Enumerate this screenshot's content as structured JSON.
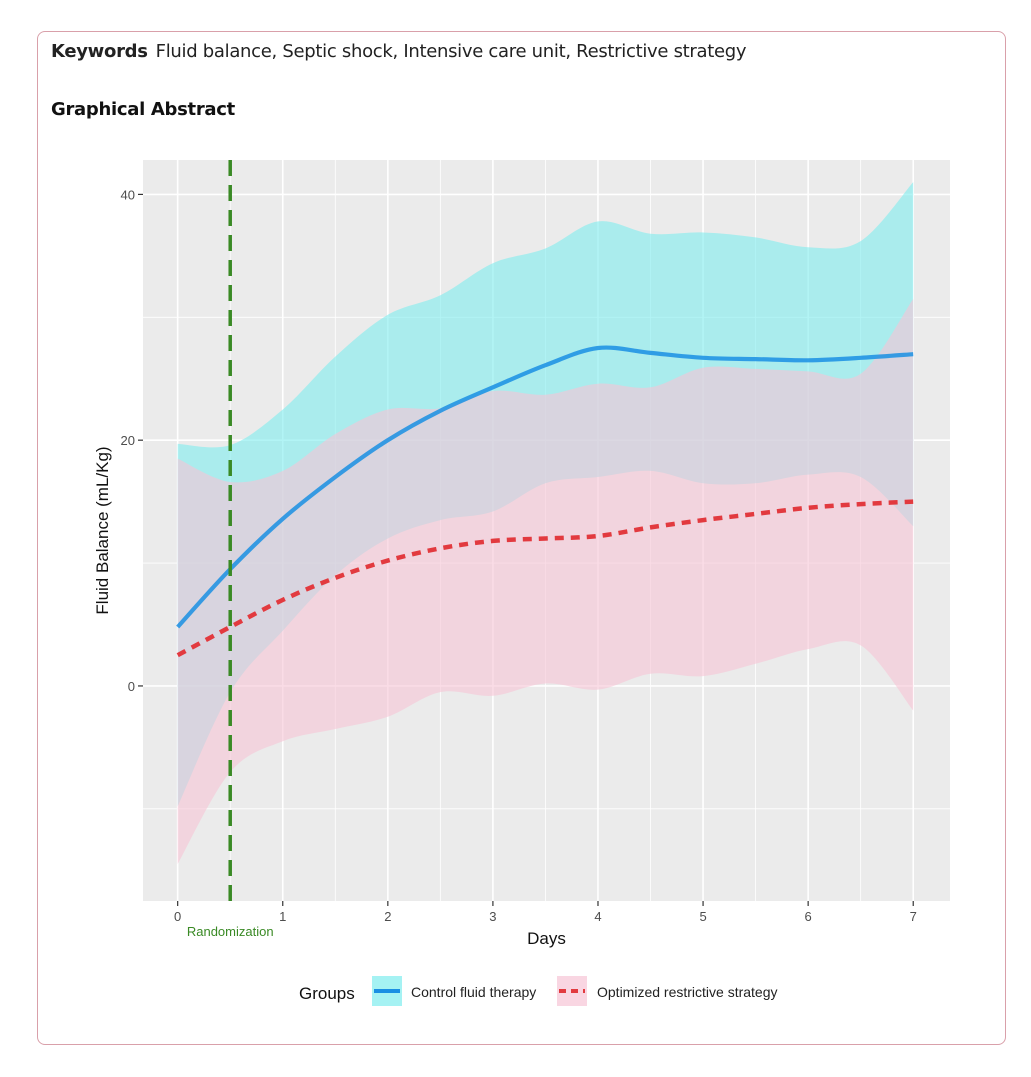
{
  "keywords": {
    "label": "Keywords",
    "text": "Fluid balance, Septic shock, Intensive care unit, Restrictive strategy"
  },
  "graphical_abstract": {
    "title": "Graphical Abstract"
  },
  "colors": {
    "panel_bg": "#ebebeb",
    "grid": "#ffffff",
    "control_line": "#1a8fe3",
    "control_band": "#7fecee",
    "restrictive_line": "#e23a3f",
    "restrictive_band": "#f7c4d6",
    "overlap_band": "#cfd9e4",
    "randomization": "#3a8a25"
  },
  "chart_data": {
    "type": "line",
    "title": "",
    "xlabel": "Days",
    "ylabel": "Fluid Balance (mL/Kg)",
    "xlim": [
      -0.33,
      7.35
    ],
    "ylim": [
      -17.5,
      42.8
    ],
    "x_ticks": [
      0,
      1,
      2,
      3,
      4,
      5,
      6,
      7
    ],
    "y_ticks": [
      0,
      20,
      40
    ],
    "grid": true,
    "legend": {
      "title": "Groups",
      "position": "bottom",
      "entries": [
        "Control fluid therapy",
        "Optimized restrictive strategy"
      ]
    },
    "vline": {
      "x": 0.5,
      "label": "Randomization"
    },
    "x": [
      0,
      0.5,
      1,
      1.5,
      2,
      2.5,
      3,
      3.5,
      4,
      4.5,
      5,
      5.5,
      6,
      6.5,
      7
    ],
    "series": [
      {
        "name": "Control fluid therapy",
        "style": "solid",
        "values": [
          4.8,
          9.5,
          13.6,
          17.0,
          20.0,
          22.4,
          24.3,
          26.1,
          27.5,
          27.1,
          26.7,
          26.6,
          26.5,
          26.7,
          27.0
        ],
        "upper": [
          19.7,
          19.6,
          22.5,
          26.8,
          30.2,
          31.8,
          34.4,
          35.6,
          37.8,
          36.8,
          36.9,
          36.5,
          35.7,
          36.2,
          41.0
        ],
        "lower": [
          -9.8,
          -0.5,
          4.5,
          9.0,
          12.0,
          13.5,
          14.2,
          16.5,
          17.0,
          17.5,
          16.5,
          16.5,
          17.2,
          17.0,
          13.0
        ]
      },
      {
        "name": "Optimized restrictive strategy",
        "style": "dashed",
        "values": [
          2.5,
          4.8,
          7.0,
          8.8,
          10.2,
          11.2,
          11.8,
          12.0,
          12.2,
          12.9,
          13.5,
          14.0,
          14.5,
          14.8,
          15.0
        ],
        "upper": [
          18.5,
          16.6,
          17.5,
          20.5,
          22.5,
          22.6,
          24.0,
          23.7,
          24.6,
          24.3,
          25.9,
          25.8,
          25.6,
          25.4,
          31.5
        ],
        "lower": [
          -14.5,
          -7.0,
          -4.5,
          -3.5,
          -2.5,
          -0.5,
          -0.8,
          0.2,
          -0.3,
          1.0,
          0.8,
          1.8,
          3.0,
          3.3,
          -2.0
        ]
      }
    ]
  }
}
